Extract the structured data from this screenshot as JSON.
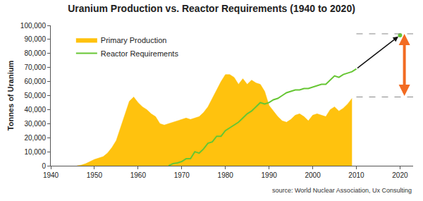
{
  "chart_data": {
    "type": "area",
    "title": "Uranium Production vs. Reactor Requirements (1940 to 2020)",
    "y_label": "Tonnes of Uranium",
    "source": "source: World Nuclear Association, Ux Consulting",
    "x": [
      1946,
      1947,
      1948,
      1949,
      1950,
      1951,
      1952,
      1953,
      1954,
      1955,
      1956,
      1957,
      1958,
      1959,
      1960,
      1961,
      1962,
      1963,
      1964,
      1965,
      1966,
      1967,
      1968,
      1969,
      1970,
      1971,
      1972,
      1973,
      1974,
      1975,
      1976,
      1977,
      1978,
      1979,
      1980,
      1981,
      1982,
      1983,
      1984,
      1985,
      1986,
      1987,
      1988,
      1989,
      1990,
      1991,
      1992,
      1993,
      1994,
      1995,
      1996,
      1997,
      1998,
      1999,
      2000,
      2001,
      2002,
      2003,
      2004,
      2005,
      2006,
      2007,
      2008,
      2009,
      2010
    ],
    "series": [
      {
        "name": "Primary Production",
        "type": "area",
        "color": "#ffc20e",
        "values": [
          0,
          500,
          1500,
          3000,
          4500,
          5500,
          6500,
          9000,
          13000,
          18000,
          27000,
          37000,
          46000,
          49000,
          45000,
          42000,
          40000,
          37000,
          35000,
          30000,
          29000,
          30000,
          31000,
          32000,
          33000,
          34000,
          33000,
          34000,
          35000,
          38000,
          42000,
          48000,
          54000,
          60000,
          65000,
          65000,
          63000,
          58000,
          62000,
          58000,
          61000,
          59000,
          58000,
          53000,
          43000,
          39000,
          35000,
          32000,
          31000,
          33000,
          36000,
          37000,
          35000,
          32000,
          36000,
          37000,
          36000,
          35000,
          40000,
          42000,
          39000,
          41000,
          44000,
          48000,
          null
        ]
      },
      {
        "name": "Reactor Requirements",
        "type": "line",
        "color": "#66c633",
        "values": [
          null,
          null,
          null,
          null,
          null,
          null,
          null,
          null,
          null,
          null,
          null,
          null,
          null,
          null,
          null,
          null,
          null,
          null,
          null,
          null,
          null,
          0,
          1500,
          2000,
          3000,
          5000,
          5000,
          10000,
          9000,
          12000,
          16000,
          17000,
          21000,
          21000,
          25000,
          27000,
          29000,
          31000,
          34000,
          37000,
          39000,
          42000,
          45000,
          44000,
          45000,
          47000,
          48000,
          50000,
          52000,
          53000,
          54000,
          54000,
          55000,
          55000,
          56000,
          57000,
          58000,
          58000,
          61000,
          64000,
          63000,
          65000,
          66000,
          67000,
          69000
        ]
      }
    ],
    "projection": {
      "x": 2020,
      "value": 93000
    },
    "gap": {
      "x": 2021,
      "low": 49000,
      "high": 94000,
      "color": "#f26b22"
    },
    "xlim": [
      1940,
      2023
    ],
    "xticks": [
      1940,
      1950,
      1960,
      1970,
      1980,
      1990,
      2000,
      2010,
      2020
    ],
    "ylim": [
      0,
      100000
    ],
    "yticks": [
      0,
      {
        "value": 10000,
        "label": "10,000"
      },
      {
        "value": 20000,
        "label": "20,000"
      },
      {
        "value": 30000,
        "label": "30,000"
      },
      {
        "value": 40000,
        "label": "40,000"
      },
      {
        "value": 50000,
        "label": "50,000"
      },
      {
        "value": 60000,
        "label": "60,000"
      },
      {
        "value": 70000,
        "label": "70,000"
      },
      {
        "value": 80000,
        "label": "80,000"
      },
      {
        "value": 90000,
        "label": "90,000"
      },
      {
        "value": 100000,
        "label": "100,000"
      }
    ],
    "grid": false,
    "legend": "top-left"
  }
}
